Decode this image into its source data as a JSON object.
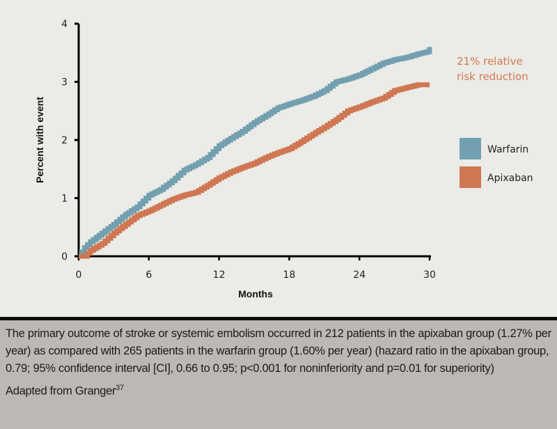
{
  "chart_data": {
    "type": "line",
    "step": true,
    "title": "",
    "xlabel": "Months",
    "ylabel": "Percent with event",
    "xlim": [
      0,
      30
    ],
    "ylim": [
      0,
      4
    ],
    "xticks": [
      0,
      6,
      12,
      18,
      24,
      30
    ],
    "yticks": [
      0,
      1,
      2,
      3,
      4
    ],
    "grid": false,
    "legend_position": "right",
    "series": [
      {
        "name": "Warfarin",
        "color": "#72a0b0",
        "x": [
          0,
          0.5,
          1,
          2,
          3,
          4,
          5,
          6,
          7,
          8,
          9,
          10,
          11,
          12,
          13,
          14,
          15,
          16,
          17,
          18,
          19,
          20,
          21,
          22,
          23,
          24,
          25,
          26,
          27,
          28,
          29,
          29.8,
          30
        ],
        "y": [
          0,
          0.15,
          0.25,
          0.4,
          0.55,
          0.72,
          0.85,
          1.05,
          1.15,
          1.3,
          1.48,
          1.58,
          1.7,
          1.9,
          2.03,
          2.15,
          2.3,
          2.42,
          2.55,
          2.62,
          2.68,
          2.75,
          2.85,
          3.0,
          3.05,
          3.12,
          3.22,
          3.32,
          3.38,
          3.42,
          3.48,
          3.52,
          3.6
        ]
      },
      {
        "name": "Apixaban",
        "color": "#cf7752",
        "x": [
          0,
          0.5,
          1,
          2,
          3,
          4,
          5,
          6,
          7,
          8,
          9,
          10,
          11,
          12,
          13,
          14,
          15,
          16,
          17,
          18,
          19,
          20,
          21,
          22,
          23,
          24,
          25,
          26,
          27,
          28,
          29,
          30
        ],
        "y": [
          0,
          0,
          0.1,
          0.22,
          0.4,
          0.55,
          0.7,
          0.78,
          0.88,
          0.98,
          1.05,
          1.1,
          1.22,
          1.35,
          1.45,
          1.53,
          1.6,
          1.7,
          1.78,
          1.85,
          1.97,
          2.1,
          2.22,
          2.35,
          2.5,
          2.57,
          2.65,
          2.72,
          2.85,
          2.9,
          2.95,
          2.95
        ]
      }
    ],
    "annotations": [
      {
        "text_line1": "21% relative",
        "text_line2": "risk reduction",
        "color": "#d07a52"
      }
    ]
  },
  "caption": {
    "text": "The primary outcome of stroke or systemic embolism occurred in 212 patients in the apixaban group (1.27% per year) as compared with 265 patients in the warfarin group (1.60% per year) (hazard ratio in the apixaban group, 0.79; 95% confidence interval [CI], 0.66 to 0.95; p<0.001 for noninferiority and p=0.01 for superiority)",
    "source": "Adapted from Granger",
    "source_ref": "37"
  }
}
